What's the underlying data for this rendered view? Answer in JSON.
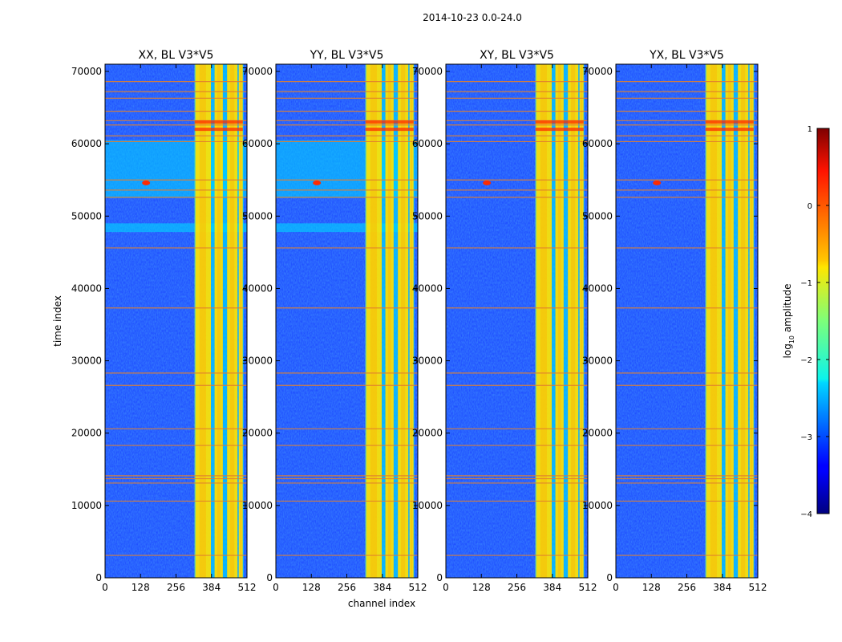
{
  "figure_title": "2014-10-23 0.0-24.0",
  "chart_data": [
    {
      "type": "heatmap",
      "title": "XX, BL V3*V5",
      "xlabel": "channel index",
      "ylabel": "time index",
      "xlim": [
        0,
        512
      ],
      "ylim": [
        0,
        71000
      ],
      "xticks": [
        0,
        128,
        256,
        384,
        512
      ],
      "yticks": [
        0,
        10000,
        20000,
        30000,
        40000,
        50000,
        60000,
        70000
      ],
      "bright_bands_channels": [
        [
          323,
          382
        ],
        [
          395,
          425
        ],
        [
          440,
          478
        ],
        [
          482,
          497
        ]
      ],
      "rfi_rows": [
        3100,
        10600,
        13100,
        13700,
        14100,
        18300,
        20600,
        26600,
        28300,
        37300,
        45600,
        52600,
        53600,
        55000,
        60300,
        61100,
        62600,
        63200,
        64500,
        66300,
        67200,
        68600
      ]
    },
    {
      "type": "heatmap",
      "title": "YY, BL V3*V5",
      "xlabel": "channel index",
      "ylabel": "",
      "xlim": [
        0,
        512
      ],
      "ylim": [
        0,
        71000
      ],
      "xticks": [
        0,
        128,
        256,
        384,
        512
      ],
      "yticks": [
        0,
        10000,
        20000,
        30000,
        40000,
        50000,
        60000,
        70000
      ],
      "bright_bands_channels": [
        [
          323,
          382
        ],
        [
          395,
          425
        ],
        [
          440,
          478
        ],
        [
          482,
          497
        ]
      ],
      "rfi_rows": [
        3100,
        10600,
        13100,
        13700,
        14100,
        18300,
        20600,
        26600,
        28300,
        37300,
        45600,
        52600,
        53600,
        55000,
        60300,
        61100,
        62600,
        63200,
        64500,
        66300,
        67200,
        68600
      ]
    },
    {
      "type": "heatmap",
      "title": "XY, BL V3*V5",
      "xlabel": "channel index",
      "ylabel": "",
      "xlim": [
        0,
        512
      ],
      "ylim": [
        0,
        71000
      ],
      "xticks": [
        0,
        128,
        256,
        384,
        512
      ],
      "yticks": [
        0,
        10000,
        20000,
        30000,
        40000,
        50000,
        60000,
        70000
      ],
      "bright_bands_channels": [
        [
          323,
          382
        ],
        [
          395,
          425
        ],
        [
          440,
          478
        ],
        [
          482,
          497
        ]
      ],
      "rfi_rows": [
        3100,
        10600,
        13100,
        13700,
        14100,
        18300,
        20600,
        26600,
        28300,
        37300,
        45600,
        52600,
        53600,
        55000,
        60300,
        61100,
        62600,
        63200,
        64500,
        66300,
        67200,
        68600
      ]
    },
    {
      "type": "heatmap",
      "title": "YX, BL V3*V5",
      "xlabel": "channel index",
      "ylabel": "",
      "xlim": [
        0,
        512
      ],
      "ylim": [
        0,
        71000
      ],
      "xticks": [
        0,
        128,
        256,
        384,
        512
      ],
      "yticks": [
        0,
        10000,
        20000,
        30000,
        40000,
        50000,
        60000,
        70000
      ],
      "bright_bands_channels": [
        [
          323,
          382
        ],
        [
          395,
          425
        ],
        [
          440,
          478
        ],
        [
          482,
          497
        ]
      ],
      "rfi_rows": [
        3100,
        10600,
        13100,
        13700,
        14100,
        18300,
        20600,
        26600,
        28300,
        37300,
        45600,
        52600,
        53600,
        55000,
        60300,
        61100,
        62600,
        63200,
        64500,
        66300,
        67200,
        68600
      ]
    }
  ],
  "colorbar": {
    "label_prefix": "log",
    "label_subscript": "10",
    "label_suffix": " amplitude",
    "range": [
      -4,
      1
    ],
    "ticks": [
      "1",
      "0",
      "−1",
      "−2",
      "−3",
      "−4"
    ],
    "colormap": "jet"
  },
  "colors": {
    "background": "#00007f",
    "noise_floor": "#1f4fff",
    "mid": "#00d7ff",
    "high": "#ffe600",
    "peak": "#ff2a00",
    "rfi_line": "#e08030"
  }
}
